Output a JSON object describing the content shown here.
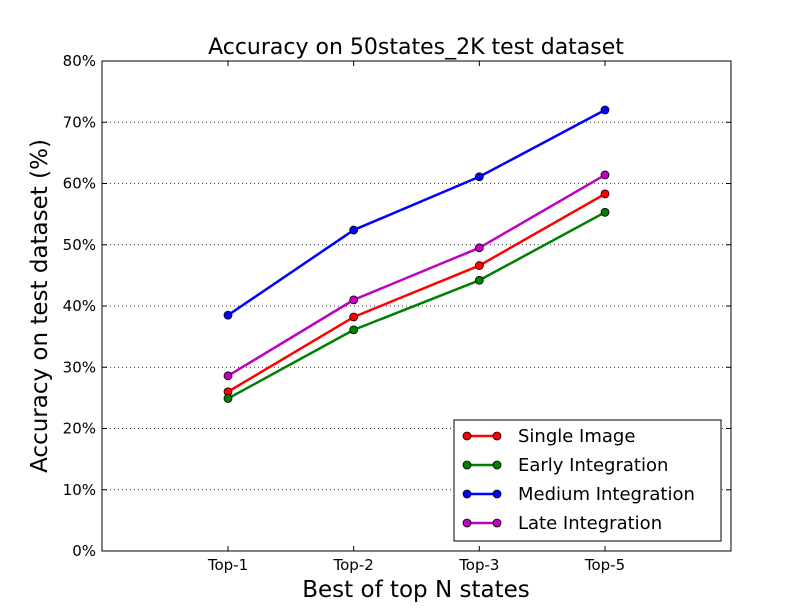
{
  "chart_data": {
    "type": "line",
    "title": "Accuracy on 50states_2K test dataset",
    "xlabel": "Best of top N states",
    "ylabel": "Accuracy on test dataset (%)",
    "categories": [
      "Top-1",
      "Top-2",
      "Top-3",
      "Top-5"
    ],
    "ylim": [
      0,
      80
    ],
    "yticks": [
      0,
      10,
      20,
      30,
      40,
      50,
      60,
      70,
      80
    ],
    "ytick_labels": [
      "0%",
      "10%",
      "20%",
      "30%",
      "40%",
      "50%",
      "60%",
      "70%",
      "80%"
    ],
    "grid": "horizontal dotted",
    "legend_position": "bottom-right",
    "series": [
      {
        "name": "Single Image",
        "color": "#ff0000",
        "values": [
          26.0,
          38.2,
          46.6,
          58.3
        ]
      },
      {
        "name": "Early Integration",
        "color": "#008000",
        "values": [
          24.9,
          36.1,
          44.2,
          55.3
        ]
      },
      {
        "name": "Medium Integration",
        "color": "#0000ff",
        "values": [
          38.5,
          52.4,
          61.1,
          72.0
        ]
      },
      {
        "name": "Late Integration",
        "color": "#bf00bf",
        "values": [
          28.6,
          41.0,
          49.5,
          61.4
        ]
      }
    ]
  }
}
